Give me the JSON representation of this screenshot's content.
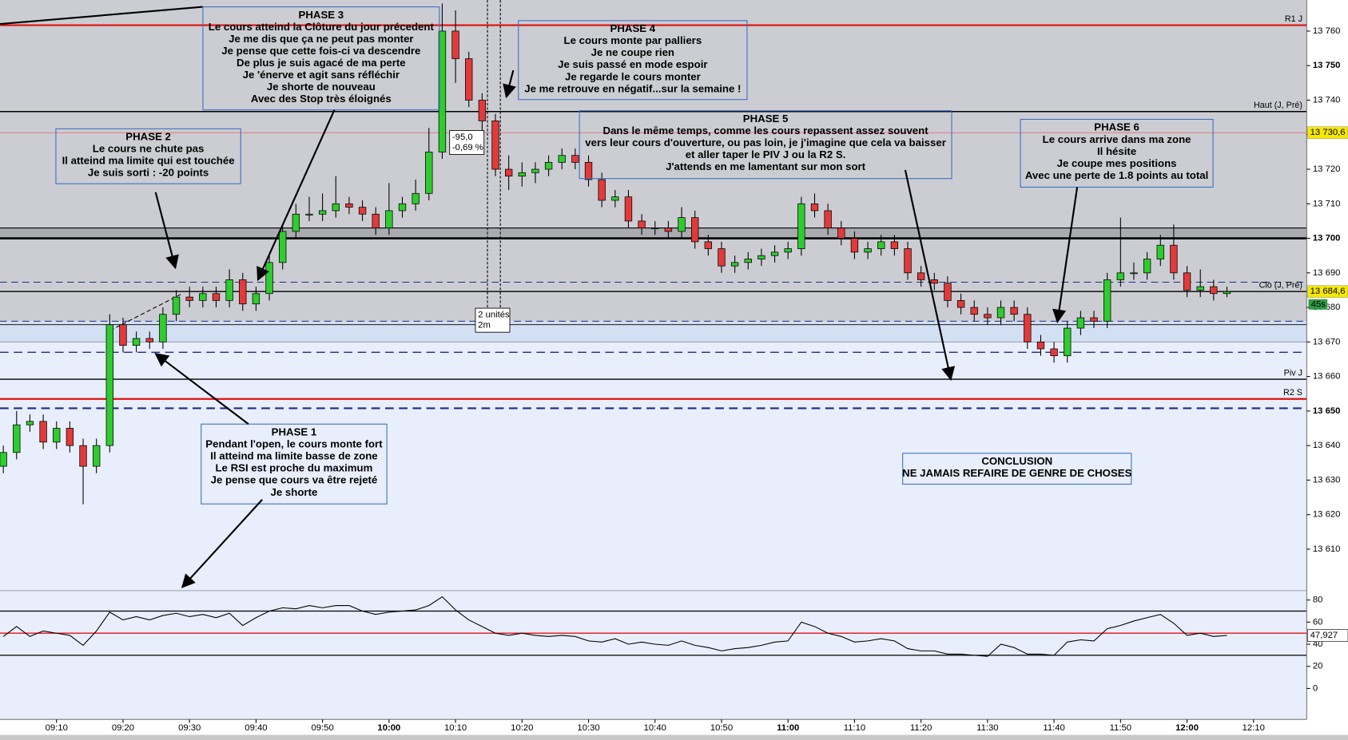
{
  "chart_data": {
    "type": "candlestick",
    "up_color": "#2ecc2e",
    "down_color": "#e23a3a",
    "x": [
      542,
      544,
      546,
      548,
      550,
      552,
      554,
      556,
      558,
      560,
      562,
      564,
      566,
      568,
      570,
      572,
      574,
      576,
      578,
      580,
      582,
      584,
      586,
      588,
      590,
      592,
      594,
      596,
      598,
      600,
      602,
      604,
      606,
      608,
      610,
      612,
      614,
      616,
      618,
      620,
      622,
      624,
      626,
      628,
      630,
      632,
      634,
      636,
      638,
      640,
      642,
      644,
      646,
      648,
      650,
      652,
      654,
      656,
      658,
      660,
      662,
      664,
      666,
      668,
      670,
      672,
      674,
      676,
      678,
      680,
      682,
      684,
      686,
      688,
      690,
      692,
      694,
      696,
      698,
      700,
      702,
      704,
      706,
      708,
      710,
      712,
      714,
      716,
      718,
      720,
      722,
      724,
      726
    ],
    "open": [
      13634,
      13638,
      13646,
      13647,
      13641,
      13645,
      13640,
      13634,
      13640,
      13675,
      13669,
      13671,
      13670,
      13678,
      13683,
      13682,
      13684,
      13682,
      13688,
      13681,
      13684,
      13693,
      13702,
      13707,
      13707,
      13708,
      13710,
      13709,
      13707,
      13703,
      13708,
      13710,
      13713,
      13725,
      13760,
      13752,
      13740,
      13734,
      13720,
      13718,
      13719,
      13720,
      13722,
      13724,
      13722,
      13717,
      13711,
      13712,
      13705,
      13703,
      13703,
      13702,
      13706,
      13699,
      13697,
      13692,
      13693,
      13694,
      13695,
      13696,
      13697,
      13710,
      13708,
      13703,
      13700,
      13696,
      13697,
      13699,
      13697,
      13690,
      13688,
      13687,
      13682,
      13680,
      13678,
      13677,
      13680,
      13678,
      13670,
      13668,
      13666,
      13674,
      13677,
      13676,
      13688,
      13690,
      13690,
      13694,
      13698,
      13690,
      13685,
      13686,
      13684
    ],
    "high": [
      13640,
      13650,
      13649,
      13649,
      13647,
      13647,
      13642,
      13642,
      13678,
      13677,
      13673,
      13673,
      13680,
      13685,
      13686,
      13686,
      13686,
      13691,
      13690,
      13686,
      13695,
      13704,
      13710,
      13712,
      13713,
      13718,
      13712,
      13711,
      13709,
      13716,
      13712,
      13717,
      13732,
      13768,
      13766,
      13754,
      13742,
      13736,
      13724,
      13722,
      13722,
      13724,
      13726,
      13726,
      13724,
      13719,
      13714,
      13714,
      13707,
      13705,
      13705,
      13709,
      13708,
      13701,
      13699,
      13695,
      13696,
      13697,
      13698,
      13699,
      13712,
      13713,
      13710,
      13705,
      13702,
      13699,
      13701,
      13701,
      13699,
      13692,
      13690,
      13689,
      13684,
      13682,
      13680,
      13682,
      13682,
      13680,
      13672,
      13670,
      13676,
      13679,
      13679,
      13690,
      13706,
      13693,
      13696,
      13701,
      13704,
      13692,
      13691,
      13688,
      13686
    ],
    "low": [
      13632,
      13636,
      13644,
      13639,
      13639,
      13638,
      13623,
      13632,
      13638,
      13667,
      13667,
      13668,
      13668,
      13676,
      13680,
      13680,
      13680,
      13680,
      13679,
      13679,
      13682,
      13691,
      13700,
      13705,
      13705,
      13706,
      13707,
      13705,
      13701,
      13701,
      13706,
      13708,
      13711,
      13723,
      13745,
      13738,
      13730,
      13718,
      13714,
      13715,
      13716,
      13718,
      13720,
      13720,
      13715,
      13709,
      13709,
      13703,
      13701,
      13701,
      13700,
      13700,
      13697,
      13695,
      13690,
      13690,
      13691,
      13692,
      13693,
      13694,
      13695,
      13706,
      13701,
      13698,
      13694,
      13694,
      13695,
      13695,
      13688,
      13686,
      13685,
      13680,
      13678,
      13676,
      13675,
      13675,
      13676,
      13668,
      13666,
      13664,
      13664,
      13672,
      13674,
      13674,
      13686,
      13688,
      13688,
      13692,
      13688,
      13683,
      13683,
      13682,
      13683
    ],
    "close": [
      13638,
      13646,
      13647,
      13641,
      13645,
      13640,
      13634,
      13640,
      13675,
      13669,
      13671,
      13670,
      13678,
      13683,
      13682,
      13684,
      13682,
      13688,
      13681,
      13684,
      13693,
      13702,
      13707,
      13707,
      13708,
      13710,
      13709,
      13707,
      13703,
      13708,
      13710,
      13713,
      13725,
      13760,
      13752,
      13740,
      13734,
      13720,
      13718,
      13719,
      13720,
      13722,
      13724,
      13722,
      13717,
      13711,
      13712,
      13705,
      13703,
      13703,
      13702,
      13706,
      13699,
      13697,
      13692,
      13693,
      13694,
      13695,
      13696,
      13697,
      13710,
      13708,
      13703,
      13700,
      13696,
      13697,
      13699,
      13697,
      13690,
      13688,
      13687,
      13682,
      13680,
      13678,
      13677,
      13680,
      13678,
      13670,
      13668,
      13666,
      13674,
      13677,
      13676,
      13688,
      13690,
      13690,
      13694,
      13698,
      13690,
      13685,
      13686,
      13684,
      13684.6
    ],
    "xlim": [
      541.5,
      738
    ],
    "xticks": [
      {
        "value": 550,
        "label": "09:10"
      },
      {
        "value": 560,
        "label": "09:20"
      },
      {
        "value": 570,
        "label": "09:30"
      },
      {
        "value": 580,
        "label": "09:40"
      },
      {
        "value": 590,
        "label": "09:50"
      },
      {
        "value": 600,
        "label": "10:00"
      },
      {
        "value": 610,
        "label": "10:10"
      },
      {
        "value": 620,
        "label": "10:20"
      },
      {
        "value": 630,
        "label": "10:30"
      },
      {
        "value": 640,
        "label": "10:40"
      },
      {
        "value": 650,
        "label": "10:50"
      },
      {
        "value": 660,
        "label": "11:00"
      },
      {
        "value": 670,
        "label": "11:10"
      },
      {
        "value": 680,
        "label": "11:20"
      },
      {
        "value": 690,
        "label": "11:30"
      },
      {
        "value": 700,
        "label": "11:40"
      },
      {
        "value": 710,
        "label": "11:50"
      },
      {
        "value": 720,
        "label": "12:00"
      },
      {
        "value": 730,
        "label": "12:10"
      }
    ],
    "ylim": [
      13598,
      13769
    ],
    "yticks": [
      {
        "value": 13610,
        "label": "13 610"
      },
      {
        "value": 13620,
        "label": "13 620"
      },
      {
        "value": 13630,
        "label": "13 630"
      },
      {
        "value": 13640,
        "label": "13 640"
      },
      {
        "value": 13650,
        "label": "13 650"
      },
      {
        "value": 13660,
        "label": "13 660"
      },
      {
        "value": 13670,
        "label": "13 670"
      },
      {
        "value": 13680,
        "label": "13 680"
      },
      {
        "value": 13690,
        "label": "13 690"
      },
      {
        "value": 13700,
        "label": "13 700"
      },
      {
        "value": 13710,
        "label": "13 710"
      },
      {
        "value": 13720,
        "label": "13 720"
      },
      {
        "value": 13730,
        "label": "13 730"
      },
      {
        "value": 13740,
        "label": "13 740"
      },
      {
        "value": 13750,
        "label": "13 750"
      },
      {
        "value": 13760,
        "label": "13 760"
      }
    ],
    "zones": [
      {
        "from": 13676,
        "to": 13769,
        "color": "#cccdd2"
      },
      {
        "from": 13700,
        "to": 13703,
        "color": "#a9abb0"
      },
      {
        "from": 13670,
        "to": 13676,
        "color": "#d3dff3"
      },
      {
        "from": 13598,
        "to": 13670,
        "color": "#e8eefb"
      }
    ],
    "levels": [
      {
        "value": 13761.7,
        "color": "#e01010",
        "width": 2,
        "label": "R1 J",
        "label_color": "#e01010"
      },
      {
        "value": 13736.7,
        "color": "#000000",
        "width": 1.5,
        "label": "Haut (J, Pré)",
        "label_color": "#000000"
      },
      {
        "value": 13730.6,
        "color": "#e07070",
        "width": 0.8
      },
      {
        "value": 13703,
        "color": "#000000",
        "width": 1
      },
      {
        "value": 13700,
        "color": "#000000",
        "width": 2.5
      },
      {
        "value": 13687.3,
        "color": "#1c2a8c",
        "width": 1,
        "dash": "8 5"
      },
      {
        "value": 13684.6,
        "color": "#000000",
        "width": 1.2,
        "label": "Clo (J, Pré)",
        "label_color": "#000000"
      },
      {
        "value": 13676,
        "color": "#1c2a8c",
        "width": 1,
        "dash": "8 5"
      },
      {
        "value": 13675,
        "color": "#000000",
        "width": 0.8
      },
      {
        "value": 13670,
        "color": "#8890b0",
        "width": 0.8
      },
      {
        "value": 13667,
        "color": "#1c2a8c",
        "width": 1.2,
        "dash": "10 6"
      },
      {
        "value": 13659.2,
        "color": "#000000",
        "width": 1.2,
        "label": "Piv J",
        "label_color": "#000000"
      },
      {
        "value": 13653.5,
        "color": "#e01010",
        "width": 2,
        "label": "R2 S",
        "label_color": "#e01010"
      },
      {
        "value": 13650.8,
        "color": "#1c2a8c",
        "width": 2,
        "dash": "10 6"
      }
    ],
    "price_tags": [
      {
        "value": 13730.6,
        "label": "13 730,6"
      },
      {
        "value": 13684.6,
        "label": "13 684,6"
      }
    ],
    "timer_label": "45s",
    "position_box": [
      "-95,0",
      "-0,69 %"
    ],
    "order_box": [
      "2 unités",
      "2m"
    ],
    "annotations": [
      {
        "title": "PHASE 3",
        "lines": [
          "Le cours atteind la Clôture du jour précedent",
          "Je me dis que ça ne peut pas monter",
          "Je pense que cette fois-ci va descendre",
          "De plus je suis agacé de ma perte",
          "Je 'énerve et agit sans réfléchir",
          "Je shorte de nouveau",
          "Avec des Stop très éloignés"
        ]
      },
      {
        "title": "PHASE 4",
        "lines": [
          "Le cours monte par palliers",
          "Je ne coupe rien",
          "Je suis passé en mode espoir",
          "Je regarde le cours monter",
          "Je me retrouve en négatif...sur la semaine !"
        ]
      },
      {
        "title": "PHASE 5",
        "lines": [
          "Dans le même temps, comme les cours repassent assez souvent",
          "vers leur cours d'ouverture, ou pas loin, je j'imagine que cela va baisser",
          "et aller taper le PIV J ou la R2 S.",
          "J'attends en me lamentant sur mon sort"
        ]
      },
      {
        "title": "PHASE 2",
        "lines": [
          "Le cours ne chute pas",
          "Il atteind ma limite qui est touchée",
          "Je suis sorti : -20 points"
        ]
      },
      {
        "title": "PHASE 6",
        "lines": [
          "Le cours arrive dans ma zone",
          "Il hésite",
          "Je coupe mes positions",
          "Avec une perte de 1.8 points au total"
        ]
      },
      {
        "title": "PHASE 1",
        "lines": [
          "Pendant l'open, le cours monte fort",
          "Il atteind ma limite basse de zone",
          "Le RSI est proche du maximum",
          "Je pense que cours va être rejeté",
          "Je shorte"
        ]
      },
      {
        "lines": [
          "CONCLUSION",
          "NE JAMAIS REFAIRE DE GENRE DE CHOSES"
        ],
        "color": "#e00000"
      }
    ],
    "indicator": {
      "type": "line",
      "color": "#000000",
      "values": [
        47,
        56,
        47,
        52,
        50,
        48,
        39,
        52,
        69,
        62,
        65,
        62,
        66,
        68,
        65,
        67,
        64,
        68,
        57,
        64,
        70,
        73,
        72,
        75,
        73,
        75,
        75,
        70,
        67,
        69,
        70,
        71,
        75,
        83,
        71,
        62,
        56,
        50,
        48,
        50,
        48,
        47,
        48,
        47,
        43,
        42,
        45,
        40,
        42,
        40,
        39,
        43,
        39,
        37,
        34,
        36,
        37,
        39,
        42,
        43,
        60,
        56,
        50,
        47,
        42,
        43,
        45,
        43,
        36,
        34,
        34,
        31,
        31,
        30,
        29,
        40,
        37,
        31,
        31,
        30,
        42,
        44,
        43,
        54,
        57,
        61,
        64,
        67,
        59,
        48,
        50,
        47,
        47.927
      ],
      "ylim": [
        -28,
        88.5
      ],
      "yticks": [
        0,
        20,
        40,
        60,
        80
      ],
      "levels": [
        {
          "value": 70,
          "color": "#000000"
        },
        {
          "value": 50,
          "color": "#e01010"
        },
        {
          "value": 30,
          "color": "#000000"
        }
      ],
      "tag": {
        "value": 47.927,
        "label": "47,927"
      }
    }
  }
}
